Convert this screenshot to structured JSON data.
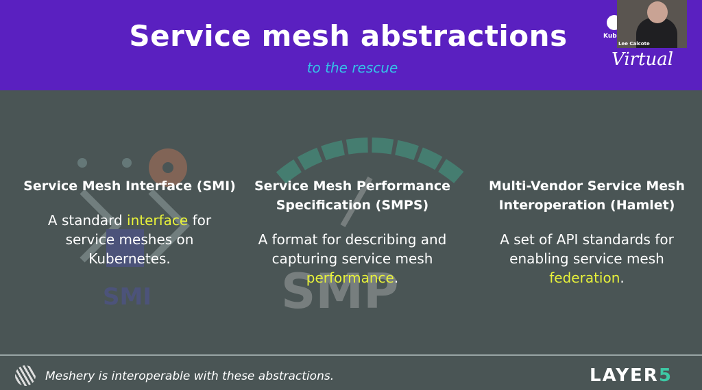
{
  "header": {
    "title": "Service mesh abstractions",
    "subtitle": "to the rescue"
  },
  "overlay": {
    "speaker_name": "Lee Calcote",
    "event_partial": "Kuber",
    "event_tag": "Virtual"
  },
  "columns": [
    {
      "title": "Service Mesh Interface (SMI)",
      "desc_pre": "A standard ",
      "desc_hl": "interface",
      "desc_post": " for service meshes on Kubernetes.",
      "watermark": "SMI"
    },
    {
      "title": "Service Mesh Performance Specification (SMPS)",
      "desc_pre": "A format for describing and capturing service mesh ",
      "desc_hl": "performance",
      "desc_post": ".",
      "watermark": "SMP"
    },
    {
      "title": "Multi-Vendor Service Mesh Interoperation (Hamlet)",
      "desc_pre": "A set of API standards for enabling service mesh ",
      "desc_hl": "federation",
      "desc_post": "."
    }
  ],
  "footer": {
    "text": "Meshery is interoperable with these abstractions.",
    "logo_main": "LAYER",
    "logo_accent": "5"
  },
  "colors": {
    "header": "#5a20c0",
    "background": "#4a5555",
    "highlight": "#e8f23a",
    "subtitle": "#34c3e8",
    "accent": "#3dc8a4"
  }
}
